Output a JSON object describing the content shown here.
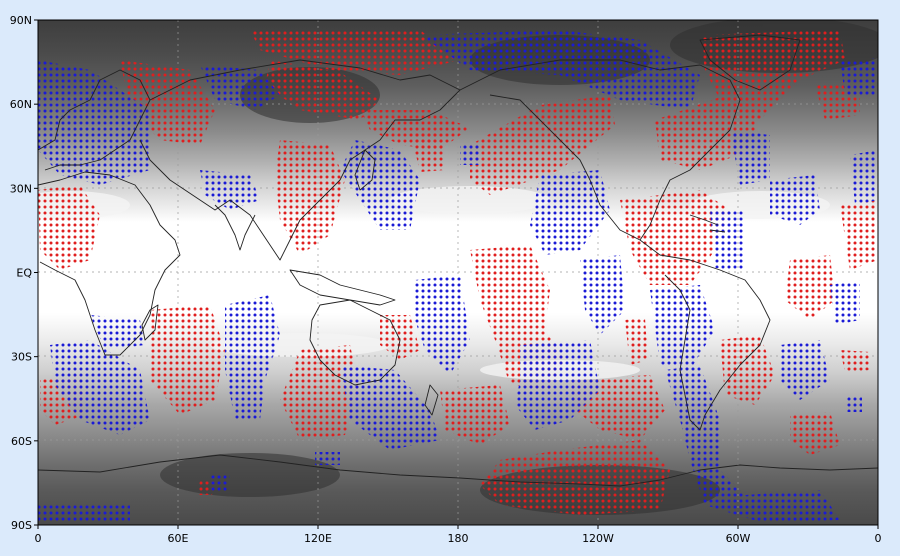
{
  "map": {
    "projection": "equirectangular",
    "x_ticks": [
      {
        "lon": 0,
        "label": "0"
      },
      {
        "lon": 60,
        "label": "60E"
      },
      {
        "lon": 120,
        "label": "120E"
      },
      {
        "lon": 180,
        "label": "180"
      },
      {
        "lon": 240,
        "label": "120W"
      },
      {
        "lon": 300,
        "label": "60W"
      },
      {
        "lon": 360,
        "label": "0"
      }
    ],
    "y_ticks": [
      {
        "lat": 90,
        "label": "90N"
      },
      {
        "lat": 60,
        "label": "60N"
      },
      {
        "lat": 30,
        "label": "30N"
      },
      {
        "lat": 0,
        "label": "EQ"
      },
      {
        "lat": -30,
        "label": "30S"
      },
      {
        "lat": -60,
        "label": "60S"
      },
      {
        "lat": -90,
        "label": "90S"
      }
    ],
    "grid": true,
    "lon_range": [
      0,
      360
    ],
    "lat_range": [
      -90,
      90
    ],
    "colors": {
      "positive_dots": "#e01e1e",
      "negative_dots": "#1a1ad6",
      "coastline": "#222222",
      "grayscale_bands": [
        "#ffffff",
        "#ececec",
        "#d2d2d2",
        "#b8b8b8",
        "#9c9c9c",
        "#828282",
        "#6a6a6a",
        "#555555",
        "#444444"
      ]
    }
  }
}
